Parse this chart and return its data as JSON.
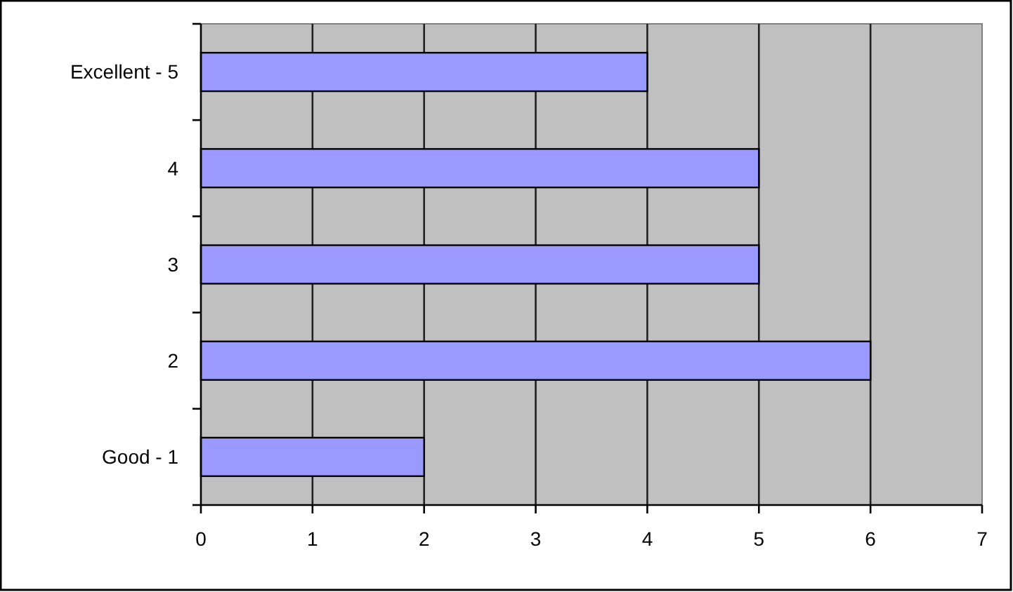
{
  "chart_data": {
    "type": "bar",
    "orientation": "horizontal",
    "categories": [
      "Excellent - 5",
      "4",
      "3",
      "2",
      "Good - 1"
    ],
    "values": [
      4,
      5,
      5,
      6,
      2
    ],
    "color": "#9999ff",
    "xlim": [
      0,
      7
    ],
    "xticks": [
      0,
      1,
      2,
      3,
      4,
      5,
      6,
      7
    ],
    "grid": "x"
  }
}
